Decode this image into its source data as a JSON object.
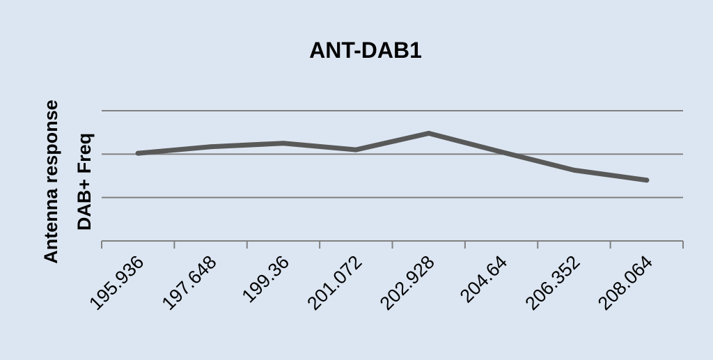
{
  "chart_data": {
    "type": "line",
    "title": "ANT-DAB1",
    "ylabel_lines": [
      "Antenna response",
      "DAB+ Freq"
    ],
    "xlabel": "",
    "categories": [
      "195.936",
      "197.648",
      "199.36",
      "201.072",
      "202.928",
      "204.64",
      "206.352",
      "208.064"
    ],
    "series": [
      {
        "values": [
          2.02,
          2.17,
          2.25,
          2.1,
          2.48,
          2.05,
          1.63,
          1.4
        ]
      }
    ],
    "ylim": [
      0,
      3
    ],
    "grid": true,
    "legend": "none",
    "colors": {
      "background": "#dce6f2",
      "line": "#595959",
      "grid": "#808080",
      "axis": "#808080"
    }
  }
}
